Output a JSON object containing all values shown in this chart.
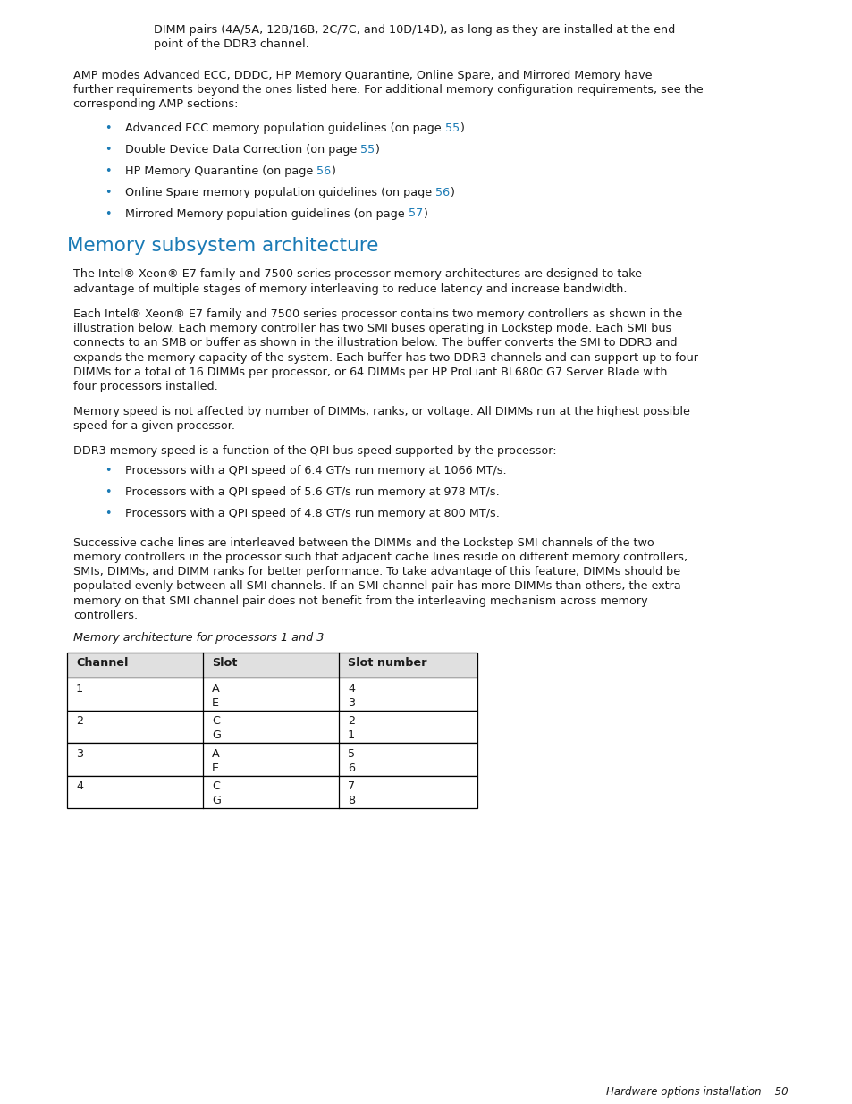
{
  "background_color": "#ffffff",
  "text_color": "#1a1a1a",
  "blue_color": "#1a7ab5",
  "bullet_color": "#1a7ab5",
  "indented_line1": "DIMM pairs (4A/5A, 12B/16B, 2C/7C, and 10D/14D), as long as they are installed at the end",
  "indented_line2": "point of the DDR3 channel.",
  "para1_line1": "AMP modes Advanced ECC, DDDC, HP Memory Quarantine, Online Spare, and Mirrored Memory have",
  "para1_line2": "further requirements beyond the ones listed here. For additional memory configuration requirements, see the",
  "para1_line3": "corresponding AMP sections:",
  "bullets": [
    {
      "pre": "Advanced ECC memory population guidelines (on page ",
      "link": "55",
      "post": ")"
    },
    {
      "pre": "Double Device Data Correction (on page ",
      "link": "55",
      "post": ")"
    },
    {
      "pre": "HP Memory Quarantine (on page ",
      "link": "56",
      "post": ")"
    },
    {
      "pre": "Online Spare memory population guidelines (on page ",
      "link": "56",
      "post": ")"
    },
    {
      "pre": "Mirrored Memory population guidelines (on page ",
      "link": "57",
      "post": ")"
    }
  ],
  "section_title": "Memory subsystem architecture",
  "para2_lines": [
    "The Intel® Xeon® E7 family and 7500 series processor memory architectures are designed to take",
    "advantage of multiple stages of memory interleaving to reduce latency and increase bandwidth."
  ],
  "para3_lines": [
    "Each Intel® Xeon® E7 family and 7500 series processor contains two memory controllers as shown in the",
    "illustration below. Each memory controller has two SMI buses operating in Lockstep mode. Each SMI bus",
    "connects to an SMB or buffer as shown in the illustration below. The buffer converts the SMI to DDR3 and",
    "expands the memory capacity of the system. Each buffer has two DDR3 channels and can support up to four",
    "DIMMs for a total of 16 DIMMs per processor, or 64 DIMMs per HP ProLiant BL680c G7 Server Blade with",
    "four processors installed."
  ],
  "para4_lines": [
    "Memory speed is not affected by number of DIMMs, ranks, or voltage. All DIMMs run at the highest possible",
    "speed for a given processor."
  ],
  "para5_line": "DDR3 memory speed is a function of the QPI bus speed supported by the processor:",
  "bullets2": [
    "Processors with a QPI speed of 6.4 GT/s run memory at 1066 MT/s.",
    "Processors with a QPI speed of 5.6 GT/s run memory at 978 MT/s.",
    "Processors with a QPI speed of 4.8 GT/s run memory at 800 MT/s."
  ],
  "para6_lines": [
    "Successive cache lines are interleaved between the DIMMs and the Lockstep SMI channels of the two",
    "memory controllers in the processor such that adjacent cache lines reside on different memory controllers,",
    "SMIs, DIMMs, and DIMM ranks for better performance. To take advantage of this feature, DIMMs should be",
    "populated evenly between all SMI channels. If an SMI channel pair has more DIMMs than others, the extra",
    "memory on that SMI channel pair does not benefit from the interleaving mechanism across memory",
    "controllers."
  ],
  "table_caption": "Memory architecture for processors 1 and 3",
  "table_headers": [
    "Channel",
    "Slot",
    "Slot number"
  ],
  "table_rows": [
    [
      "1",
      [
        "A",
        "E"
      ],
      [
        "4",
        "3"
      ]
    ],
    [
      "2",
      [
        "C",
        "G"
      ],
      [
        "2",
        "1"
      ]
    ],
    [
      "3",
      [
        "A",
        "E"
      ],
      [
        "5",
        "6"
      ]
    ],
    [
      "4",
      [
        "C",
        "G"
      ],
      [
        "7",
        "8"
      ]
    ]
  ],
  "footer": "Hardware options installation    50",
  "fs_body": 9.2,
  "fs_title": 15.5,
  "fs_footer": 8.5,
  "fs_table": 9.2
}
